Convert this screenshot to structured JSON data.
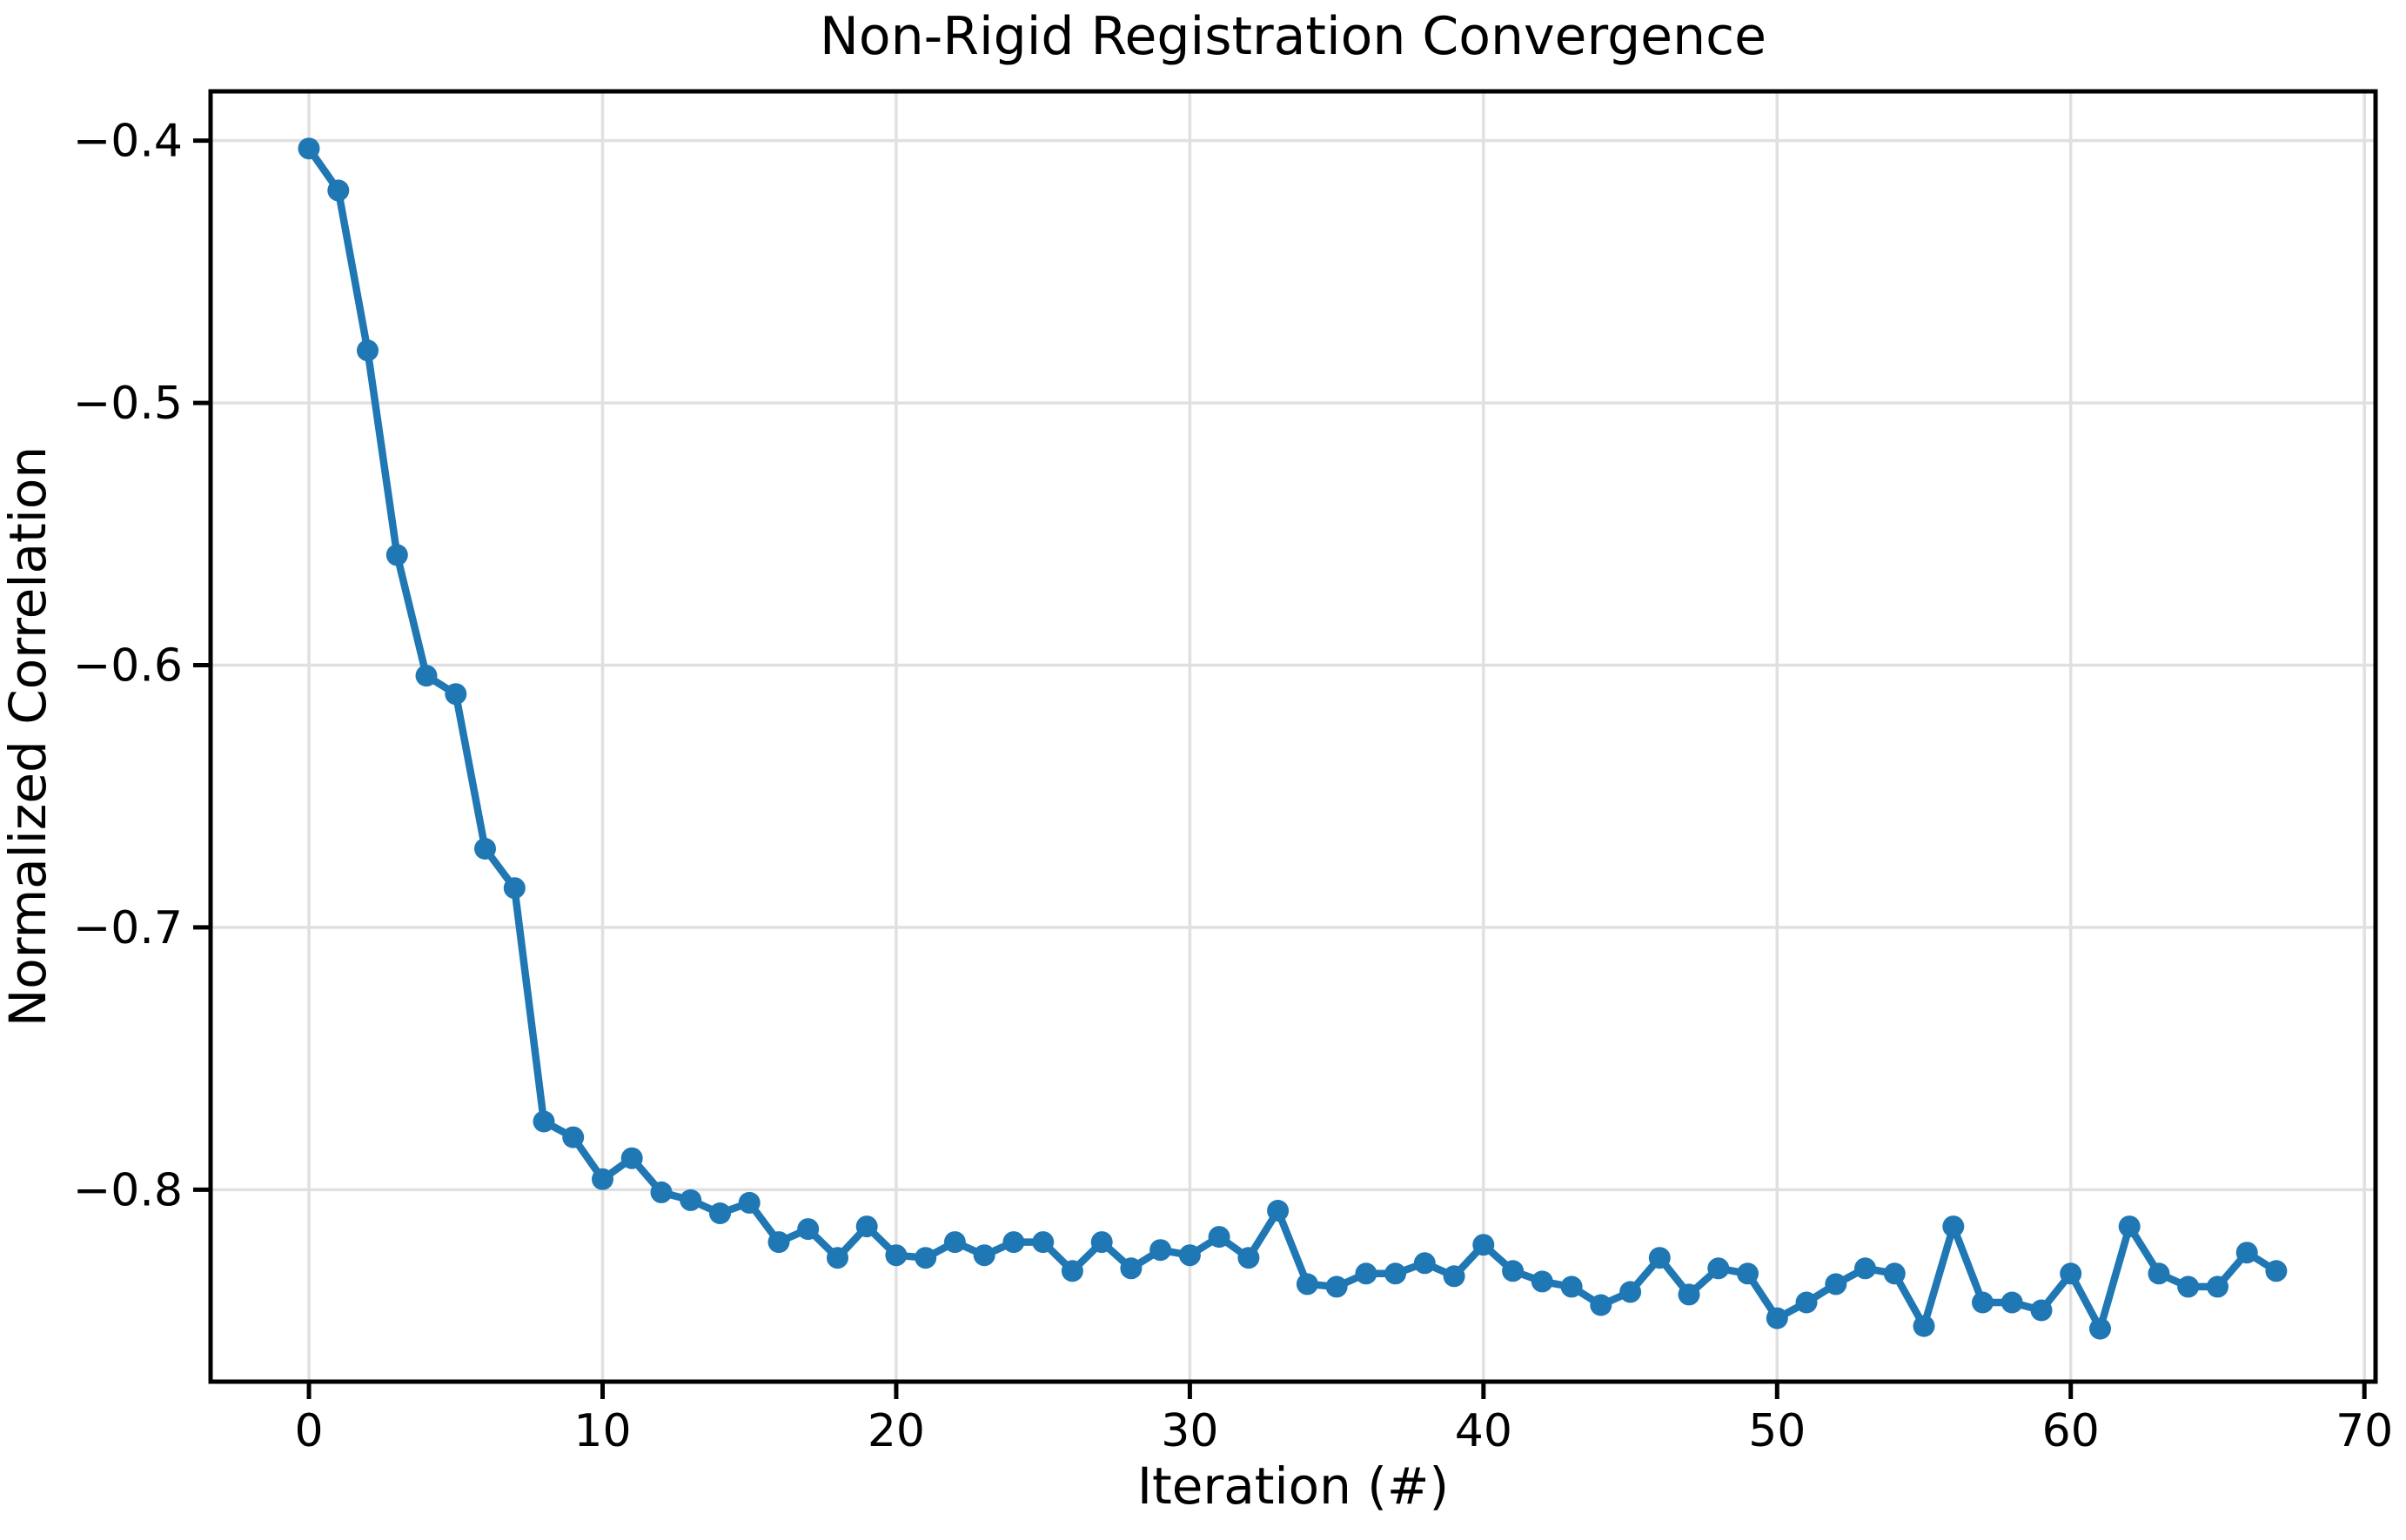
{
  "chart_data": {
    "type": "line",
    "title": "Non-Rigid Registration Convergence",
    "xlabel": "Iteration (#)",
    "ylabel": "Normalized Correlation",
    "x": [
      0,
      1,
      2,
      3,
      4,
      5,
      6,
      7,
      8,
      9,
      10,
      11,
      12,
      13,
      14,
      15,
      16,
      17,
      18,
      19,
      20,
      21,
      22,
      23,
      24,
      25,
      26,
      27,
      28,
      29,
      30,
      31,
      32,
      33,
      34,
      35,
      36,
      37,
      38,
      39,
      40,
      41,
      42,
      43,
      44,
      45,
      46,
      47,
      48,
      49,
      50,
      51,
      52,
      53,
      54,
      55,
      56,
      57,
      58,
      59,
      60,
      61,
      62,
      63,
      64,
      65,
      66,
      67
    ],
    "y": [
      -0.403,
      -0.419,
      -0.48,
      -0.558,
      -0.604,
      -0.611,
      -0.67,
      -0.685,
      -0.774,
      -0.78,
      -0.796,
      -0.788,
      -0.801,
      -0.804,
      -0.809,
      -0.805,
      -0.82,
      -0.815,
      -0.826,
      -0.814,
      -0.825,
      -0.826,
      -0.82,
      -0.825,
      -0.82,
      -0.82,
      -0.831,
      -0.82,
      -0.83,
      -0.823,
      -0.825,
      -0.818,
      -0.826,
      -0.808,
      -0.836,
      -0.837,
      -0.832,
      -0.832,
      -0.828,
      -0.833,
      -0.821,
      -0.831,
      -0.835,
      -0.837,
      -0.844,
      -0.839,
      -0.826,
      -0.84,
      -0.83,
      -0.832,
      -0.849,
      -0.843,
      -0.836,
      -0.83,
      -0.832,
      -0.852,
      -0.814,
      -0.843,
      -0.843,
      -0.846,
      -0.832,
      -0.853,
      -0.814,
      -0.832,
      -0.837,
      -0.837,
      -0.824,
      -0.831
    ],
    "x_ticks": [
      0,
      10,
      20,
      30,
      40,
      50,
      60,
      70
    ],
    "x_tick_labels": [
      "0",
      "10",
      "20",
      "30",
      "40",
      "50",
      "60",
      "70"
    ],
    "y_ticks": [
      -0.4,
      -0.5,
      -0.6,
      -0.7,
      -0.8
    ],
    "y_tick_labels": [
      "−0.4",
      "−0.5",
      "−0.6",
      "−0.7",
      "−0.8"
    ],
    "xlim": [
      -3.35,
      70.38
    ],
    "ylim": [
      -0.8732,
      -0.3812
    ],
    "grid": true,
    "legend": null,
    "line_color": "#1f77b4",
    "marker": "o",
    "grid_color": "#e0e0e0",
    "spine_color": "#000000",
    "background_color": "#ffffff"
  }
}
